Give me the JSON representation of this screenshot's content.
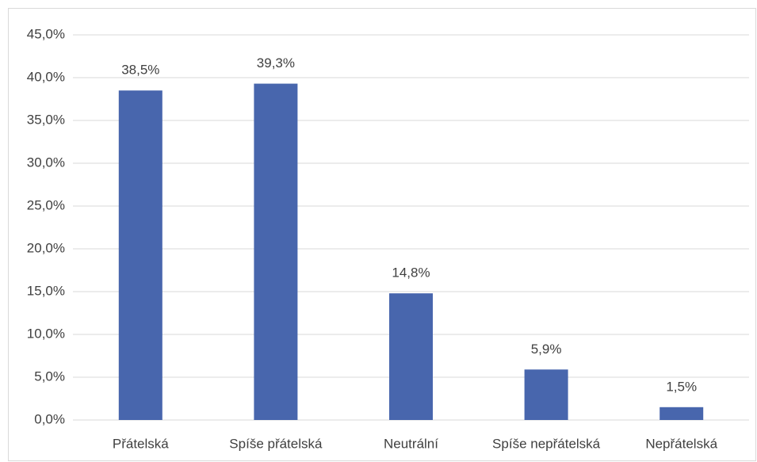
{
  "chart_data": {
    "type": "bar",
    "categories": [
      "Přátelská",
      "Spíše přátelská",
      "Neutrální",
      "Spíše nepřátelská",
      "Nepřátelská"
    ],
    "values": [
      38.5,
      39.3,
      14.8,
      5.9,
      1.5
    ],
    "value_labels": [
      "38,5%",
      "39,3%",
      "14,8%",
      "5,9%",
      "1,5%"
    ],
    "color": "#4866ad",
    "ylim": [
      0,
      45
    ],
    "yticks": [
      {
        "value": 0,
        "label": "0,0%"
      },
      {
        "value": 5,
        "label": "5,0%"
      },
      {
        "value": 10,
        "label": "10,0%"
      },
      {
        "value": 15,
        "label": "15,0%"
      },
      {
        "value": 20,
        "label": "20,0%"
      },
      {
        "value": 25,
        "label": "25,0%"
      },
      {
        "value": 30,
        "label": "30,0%"
      },
      {
        "value": 35,
        "label": "35,0%"
      },
      {
        "value": 40,
        "label": "40,0%"
      },
      {
        "value": 45,
        "label": "45,0%"
      }
    ],
    "grid": true
  }
}
